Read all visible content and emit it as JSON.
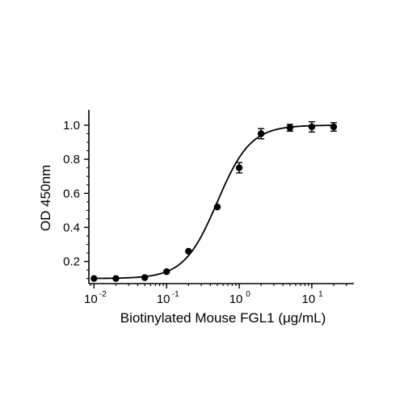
{
  "chart_data": {
    "type": "scatter",
    "title": "",
    "xlabel": "Biotinylated Mouse FGL1 (μg/mL)",
    "ylabel": "OD 450nm",
    "x_scale": "log",
    "xlim": [
      0.0085,
      38
    ],
    "ylim": [
      0.07,
      1.09
    ],
    "x_ticks": [
      {
        "value": 0.01,
        "base": "10",
        "exp": "-2"
      },
      {
        "value": 0.1,
        "base": "10",
        "exp": "-1"
      },
      {
        "value": 1,
        "base": "10",
        "exp": "0"
      },
      {
        "value": 10,
        "base": "10",
        "exp": "1"
      }
    ],
    "y_ticks": [
      {
        "value": 0.2,
        "label": "0.2"
      },
      {
        "value": 0.4,
        "label": "0.4"
      },
      {
        "value": 0.6,
        "label": "0.6"
      },
      {
        "value": 0.8,
        "label": "0.8"
      },
      {
        "value": 1.0,
        "label": "1.0"
      }
    ],
    "grid": false,
    "legend": "none",
    "series": [
      {
        "points": [
          {
            "x": 0.01,
            "y": 0.1,
            "err": 0.0
          },
          {
            "x": 0.02,
            "y": 0.1,
            "err": 0.0
          },
          {
            "x": 0.05,
            "y": 0.105,
            "err": 0.0
          },
          {
            "x": 0.1,
            "y": 0.14,
            "err": 0.0
          },
          {
            "x": 0.2,
            "y": 0.26,
            "err": 0.0
          },
          {
            "x": 0.5,
            "y": 0.52,
            "err": 0.0
          },
          {
            "x": 1.0,
            "y": 0.75,
            "err": 0.03
          },
          {
            "x": 2.0,
            "y": 0.95,
            "err": 0.03
          },
          {
            "x": 5.0,
            "y": 0.985,
            "err": 0.02
          },
          {
            "x": 10.0,
            "y": 0.99,
            "err": 0.03
          },
          {
            "x": 20.0,
            "y": 0.99,
            "err": 0.025
          }
        ],
        "fit": {
          "model": "4PL",
          "bottom": 0.1,
          "top": 1.0,
          "ec50": 0.5,
          "hill": 1.9
        }
      }
    ],
    "colors": {
      "marker": "#000000",
      "line": "#000000",
      "axis": "#000000"
    }
  }
}
